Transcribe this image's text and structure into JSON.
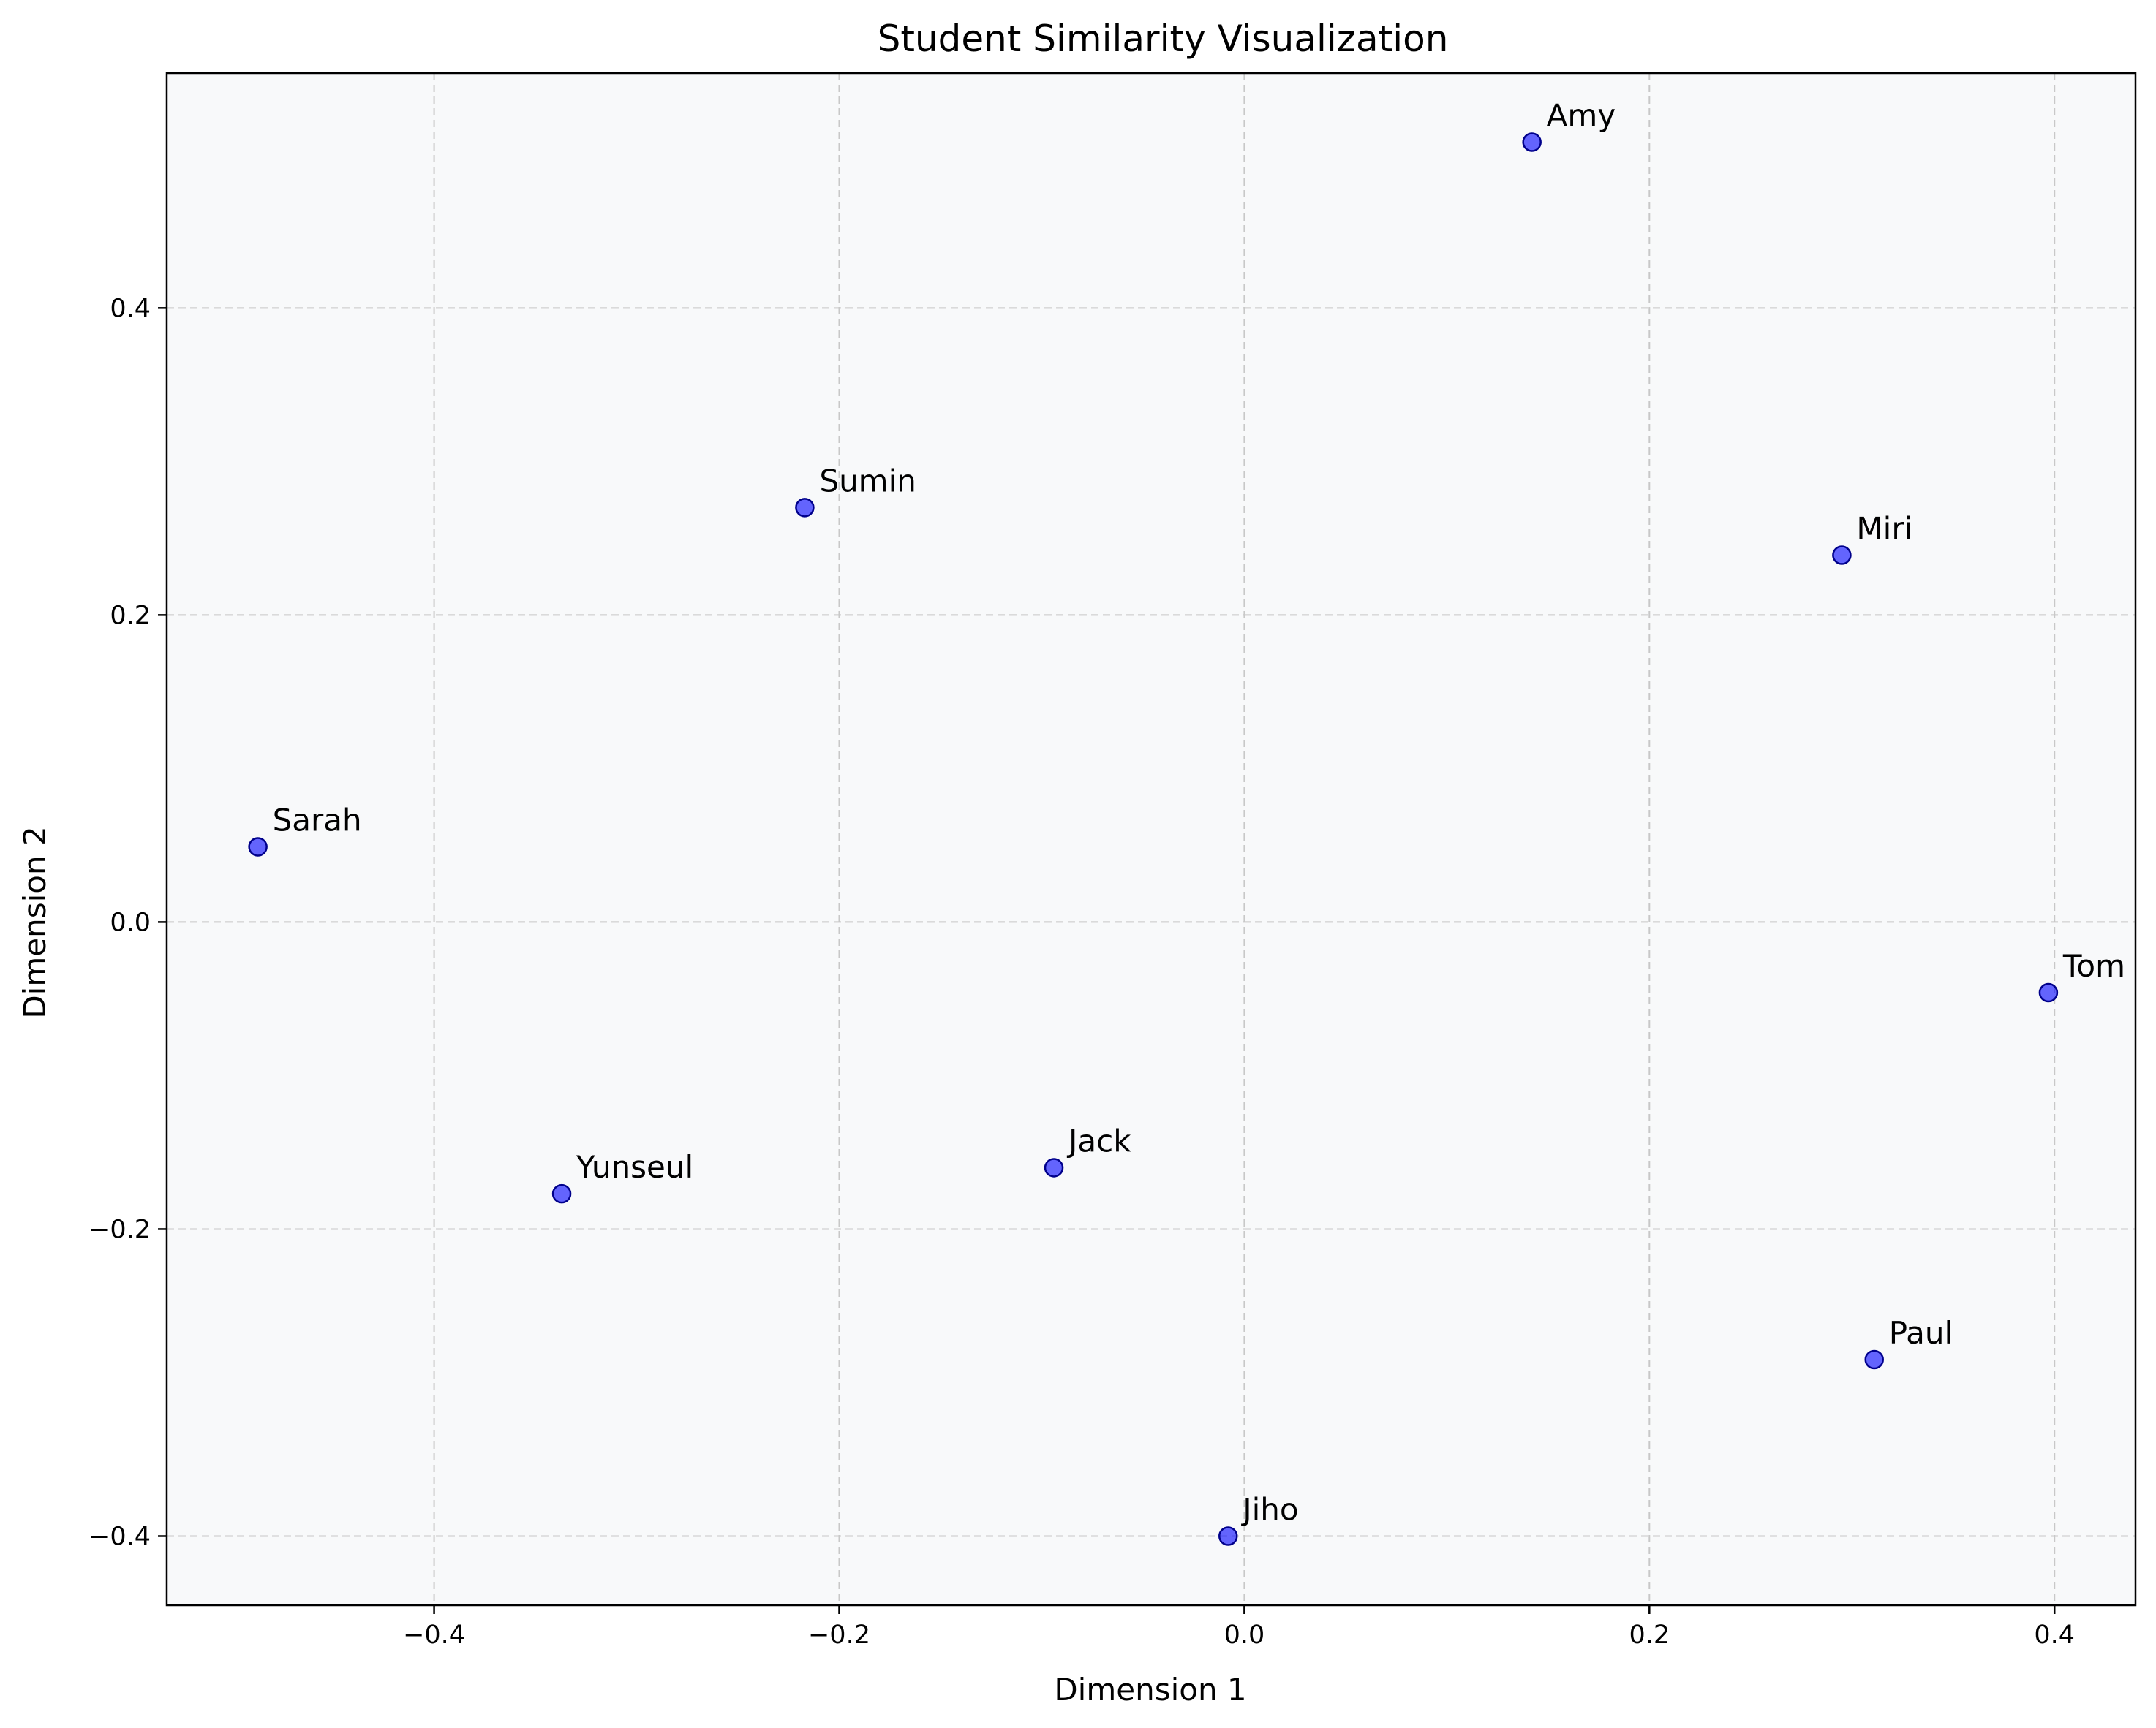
{
  "chart_data": {
    "type": "scatter",
    "title": "Student Similarity Visualization",
    "xlabel": "Dimension 1",
    "ylabel": "Dimension 2",
    "xlim": [
      -0.532,
      0.44
    ],
    "ylim": [
      -0.445,
      0.553
    ],
    "xticks": [
      -0.4,
      -0.2,
      0.0,
      0.2,
      0.4
    ],
    "yticks": [
      -0.4,
      -0.2,
      0.0,
      0.2,
      0.4
    ],
    "xtick_labels": [
      "−0.4",
      "−0.2",
      "0.0",
      "0.2",
      "0.4"
    ],
    "ytick_labels": [
      "−0.4",
      "−0.2",
      "0.0",
      "0.2",
      "0.4"
    ],
    "grid": true,
    "grid_style": "dashed",
    "legend": "none",
    "point_color": "#0000ff",
    "point_edge_color": "#00008b",
    "point_alpha": 0.6,
    "plot_background": "#f8f9fa",
    "grid_color": "#c8c8c8",
    "points": [
      {
        "label": "Amy",
        "x": 0.142,
        "y": 0.508
      },
      {
        "label": "Sumin",
        "x": -0.217,
        "y": 0.27
      },
      {
        "label": "Miri",
        "x": 0.295,
        "y": 0.239
      },
      {
        "label": "Sarah",
        "x": -0.487,
        "y": 0.049
      },
      {
        "label": "Tom",
        "x": 0.397,
        "y": -0.046
      },
      {
        "label": "Jack",
        "x": -0.094,
        "y": -0.16
      },
      {
        "label": "Yunseul",
        "x": -0.337,
        "y": -0.177
      },
      {
        "label": "Paul",
        "x": 0.311,
        "y": -0.285
      },
      {
        "label": "Jiho",
        "x": -0.008,
        "y": -0.4
      }
    ]
  }
}
